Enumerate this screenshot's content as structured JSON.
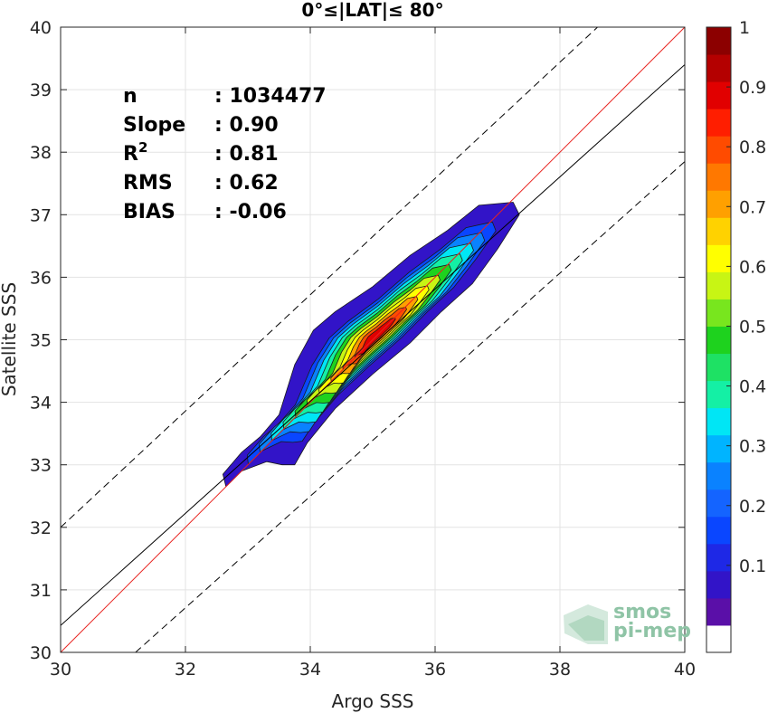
{
  "chart_data": {
    "type": "density-scatter",
    "title": "0°≤|LAT|≤ 80°",
    "xlabel": "Argo SSS",
    "ylabel": "Satellite SSS",
    "xlim": [
      30,
      40
    ],
    "ylim": [
      30,
      40
    ],
    "xticks": [
      "30",
      "32",
      "34",
      "36",
      "38",
      "40"
    ],
    "yticks": [
      "30",
      "31",
      "32",
      "33",
      "34",
      "35",
      "36",
      "37",
      "38",
      "39",
      "40"
    ],
    "grid": true,
    "stats": [
      {
        "label": "n",
        "value": ": 1034477"
      },
      {
        "label": "Slope",
        "value": ": 0.90"
      },
      {
        "label": "R",
        "sup": "2",
        "value": ": 0.81"
      },
      {
        "label": "RMS",
        "value": ": 0.62"
      },
      {
        "label": "BIAS",
        "value": ": -0.06"
      }
    ],
    "lines": [
      {
        "name": "identity",
        "color": "#e8231f",
        "style": "solid",
        "points": [
          [
            30,
            30
          ],
          [
            40,
            40
          ]
        ]
      },
      {
        "name": "regression",
        "color": "#000000",
        "style": "solid",
        "points": [
          [
            30,
            30.43
          ],
          [
            40,
            39.4
          ]
        ]
      },
      {
        "name": "upper-bound",
        "color": "#000000",
        "style": "dashed",
        "points": [
          [
            30,
            32.0
          ],
          [
            40,
            41.3
          ]
        ]
      },
      {
        "name": "lower-bound",
        "color": "#000000",
        "style": "dashed",
        "points": [
          [
            31.2,
            30.0
          ],
          [
            40,
            37.85
          ]
        ]
      }
    ],
    "density_levels": [
      0.05,
      0.1,
      0.2,
      0.3,
      0.4,
      0.5,
      0.6,
      0.7,
      0.8,
      0.9,
      1.0
    ],
    "density_peak": {
      "x": 35.05,
      "y": 35.05
    },
    "colorbar": {
      "ticks": [
        "0.1",
        "0.2",
        "0.3",
        "0.4",
        "0.5",
        "0.6",
        "0.7",
        "0.8",
        "0.9",
        "1"
      ],
      "tick_values": [
        0.1,
        0.2,
        0.3,
        0.4,
        0.5,
        0.6,
        0.7,
        0.8,
        0.9,
        1.0
      ],
      "colors": [
        "#ffffff",
        "#5a0fa8",
        "#3214c8",
        "#1e28e6",
        "#0a46ff",
        "#1464ff",
        "#0a82ff",
        "#00b4ff",
        "#00e6f5",
        "#14f0a5",
        "#1ee164",
        "#1ed21e",
        "#78e61e",
        "#c8f514",
        "#ffff00",
        "#ffd200",
        "#ffa000",
        "#ff7800",
        "#ff4b00",
        "#ff1e00",
        "#e10000",
        "#b40000",
        "#8c0000"
      ]
    }
  },
  "watermark": {
    "line1": "smos",
    "line2": "pi-mep"
  }
}
